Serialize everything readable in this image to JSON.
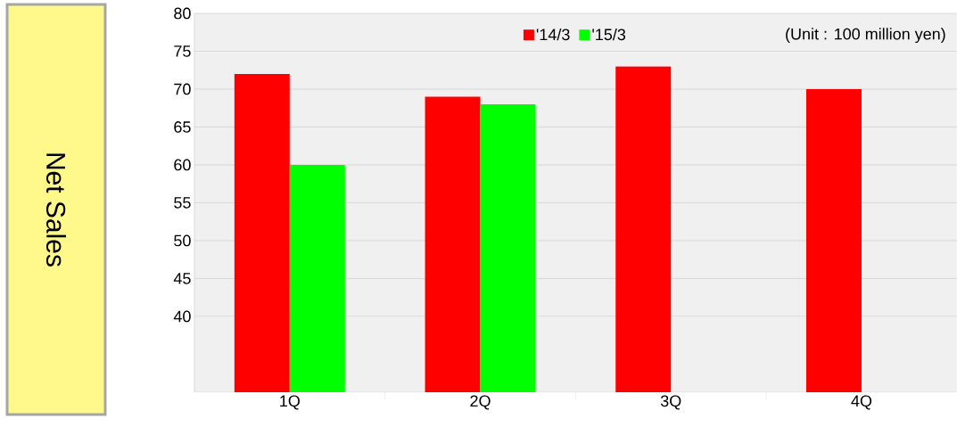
{
  "chart_data": {
    "type": "bar",
    "ylabel": "Net Sales",
    "categories": [
      "1Q",
      "2Q",
      "3Q",
      "4Q"
    ],
    "series": [
      {
        "name": "'14/3",
        "color": "#ff0000",
        "values": [
          72,
          69,
          73,
          70
        ]
      },
      {
        "name": "'15/3",
        "color": "#00ff00",
        "values": [
          60,
          68,
          null,
          null
        ]
      }
    ],
    "ylim": [
      30,
      80
    ],
    "yticks": [
      40,
      45,
      50,
      55,
      60,
      65,
      70,
      75,
      80
    ],
    "grid": "y",
    "legend": "top",
    "annotations": [
      "(Unit : 100 million yen)"
    ]
  }
}
